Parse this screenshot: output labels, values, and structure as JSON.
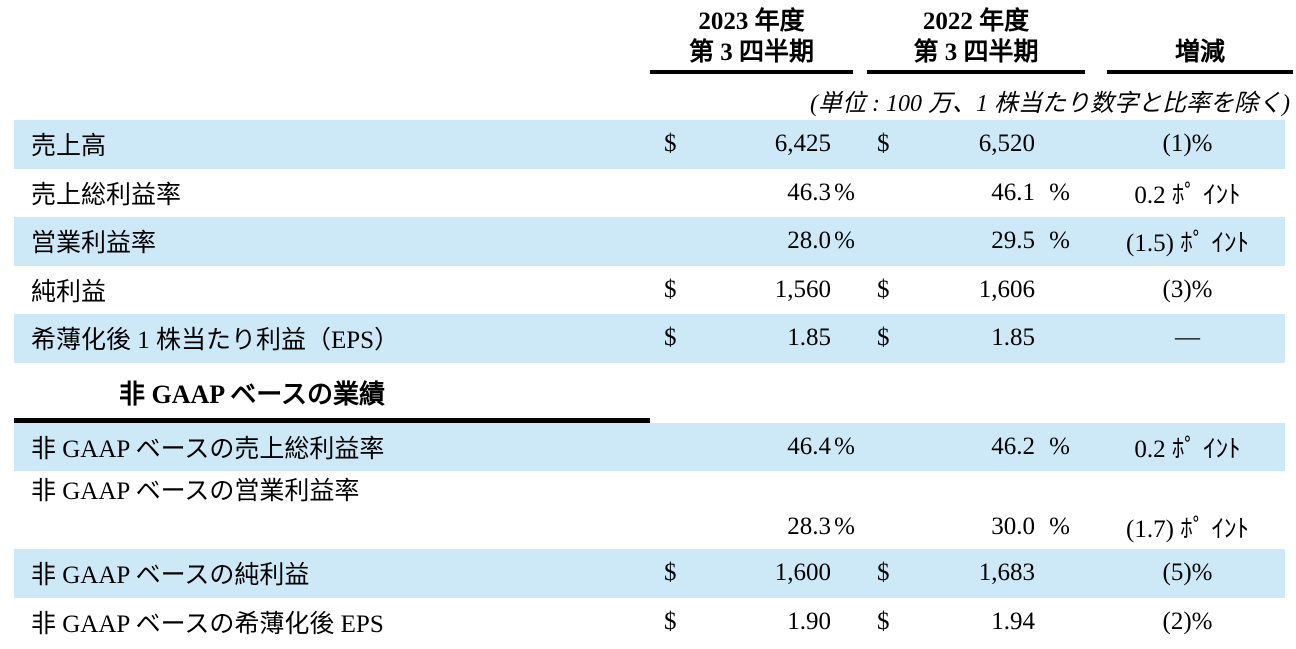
{
  "header": {
    "col1_line1": "2023 年度",
    "col1_line2": "第 3 四半期",
    "col2_line1": "2022 年度",
    "col2_line2": "第 3 四半期",
    "col3": "増減"
  },
  "unit_note": "(単位 : 100 万、1 株当たり数字と比率を除く)",
  "colors": {
    "row_shade": "#cde9f8",
    "rule": "#000000",
    "text": "#000000"
  },
  "section2_title": "非 GAAP ベースの業績",
  "table": {
    "rows": [
      {
        "label": "売上高",
        "d1": "$",
        "v1": "6,425",
        "u1": "",
        "d2": "$",
        "v2": "6,520",
        "u2": "",
        "chg": "(1)%"
      },
      {
        "label": "売上総利益率",
        "d1": "",
        "v1": "46.3",
        "u1": "%",
        "d2": "",
        "v2": "46.1",
        "u2": "%",
        "chg": "0.2 ﾎﾟ ｲﾝﾄ"
      },
      {
        "label": "営業利益率",
        "d1": "",
        "v1": "28.0",
        "u1": "%",
        "d2": "",
        "v2": "29.5",
        "u2": "%",
        "chg": "(1.5) ﾎﾟ ｲﾝﾄ"
      },
      {
        "label": "純利益",
        "d1": "$",
        "v1": "1,560",
        "u1": "",
        "d2": "$",
        "v2": "1,606",
        "u2": "",
        "chg": "(3)%"
      },
      {
        "label": "希薄化後 1 株当たり利益（EPS）",
        "d1": "$",
        "v1": "1.85",
        "u1": "",
        "d2": "$",
        "v2": "1.85",
        "u2": "",
        "chg": "—"
      },
      {
        "label": "非 GAAP ベースの売上総利益率",
        "d1": "",
        "v1": "46.4",
        "u1": "%",
        "d2": "",
        "v2": "46.2",
        "u2": "%",
        "chg": "0.2 ﾎﾟ ｲﾝﾄ"
      },
      {
        "label": "非 GAAP ベースの営業利益率",
        "d1": "",
        "v1": "28.3",
        "u1": "%",
        "d2": "",
        "v2": "30.0",
        "u2": "%",
        "chg": "(1.7) ﾎﾟ ｲﾝﾄ"
      },
      {
        "label": "非 GAAP ベースの純利益",
        "d1": "$",
        "v1": "1,600",
        "u1": "",
        "d2": "$",
        "v2": "1,683",
        "u2": "",
        "chg": "(5)%"
      },
      {
        "label": "非 GAAP ベースの希薄化後 EPS",
        "d1": "$",
        "v1": "1.90",
        "u1": "",
        "d2": "$",
        "v2": "1.94",
        "u2": "",
        "chg": "(2)%"
      }
    ]
  }
}
